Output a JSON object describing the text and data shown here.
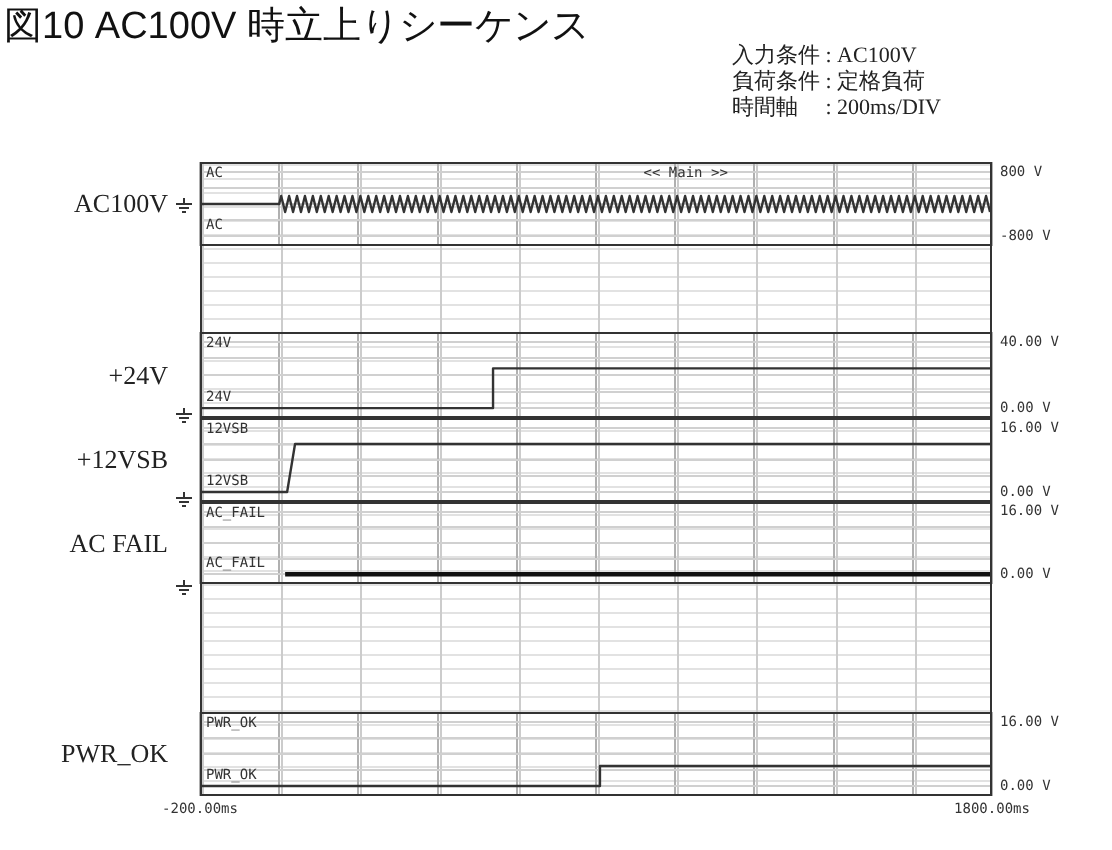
{
  "chart_data": [
    {
      "type": "line",
      "title": "図10 AC100V 時立上りシーケンス",
      "ylabel": "AC100V",
      "annotations": [
        "AC",
        "AC",
        "<< Main >>",
        "入力条件 : AC100V",
        "負荷条件 : 定格負荷",
        "時間軸　 : 200ms/DIV"
      ],
      "xlim": [
        -200,
        1800
      ],
      "xticks": [
        {
          "value": -200,
          "label": null
        },
        {
          "value": 0,
          "label": null
        },
        {
          "value": 200,
          "label": null
        },
        {
          "value": 400,
          "label": null
        },
        {
          "value": 600,
          "label": null
        },
        {
          "value": 800,
          "label": null
        },
        {
          "value": 1000,
          "label": null
        },
        {
          "value": 1200,
          "label": null
        },
        {
          "value": 1400,
          "label": null
        },
        {
          "value": 1600,
          "label": null
        },
        {
          "value": 1800,
          "label": null
        }
      ],
      "ylim": [
        -1050,
        1050
      ],
      "yticks": [
        {
          "value": -800,
          "label": "-800 V"
        },
        {
          "value": -400,
          "label": null
        },
        {
          "value": 0,
          "label": null
        },
        {
          "value": 400,
          "label": null
        },
        {
          "value": 800,
          "label": "800 V"
        }
      ],
      "grid": true,
      "legend": false,
      "marker": "none",
      "tick_labels": "y",
      "series": [
        {
          "color": "#333333",
          "x": [
            -200,
            0,
            5,
            15,
            25,
            35,
            45,
            55,
            65,
            75,
            85,
            95,
            105,
            115,
            125,
            135,
            145,
            155,
            165,
            175,
            185,
            195,
            205,
            215,
            225,
            235,
            245,
            255,
            265,
            275,
            285,
            295,
            305,
            315,
            325,
            335,
            345,
            355,
            365,
            375,
            385,
            395,
            405,
            415,
            425,
            435,
            445,
            455,
            465,
            475,
            485,
            495,
            505,
            515,
            525,
            535,
            545,
            555,
            565,
            575,
            585,
            595,
            605,
            615,
            625,
            635,
            645,
            655,
            665,
            675,
            685,
            695,
            705,
            715,
            725,
            735,
            745,
            755,
            765,
            775,
            785,
            795,
            805,
            815,
            825,
            835,
            845,
            855,
            865,
            875,
            885,
            895,
            905,
            915,
            925,
            935,
            945,
            955,
            965,
            975,
            985,
            995,
            1005,
            1015,
            1025,
            1035,
            1045,
            1055,
            1065,
            1075,
            1085,
            1095,
            1105,
            1115,
            1125,
            1135,
            1145,
            1155,
            1165,
            1175,
            1185,
            1195,
            1205,
            1215,
            1225,
            1235,
            1245,
            1255,
            1265,
            1275,
            1285,
            1295,
            1305,
            1315,
            1325,
            1335,
            1345,
            1355,
            1365,
            1375,
            1385,
            1395,
            1405,
            1415,
            1425,
            1435,
            1445,
            1455,
            1465,
            1475,
            1485,
            1495,
            1505,
            1515,
            1525,
            1535,
            1545,
            1555,
            1565,
            1575,
            1585,
            1595,
            1605,
            1615,
            1625,
            1635,
            1645,
            1655,
            1665,
            1675,
            1685,
            1695,
            1705,
            1715,
            1725,
            1735,
            1745,
            1755,
            1765,
            1775,
            1785,
            1795
          ],
          "values": [
            0,
            0,
            200,
            -200,
            200,
            -200,
            200,
            -200,
            200,
            -200,
            200,
            -200,
            200,
            -200,
            200,
            -200,
            200,
            -200,
            200,
            -200,
            200,
            -200,
            200,
            -200,
            200,
            -200,
            200,
            -200,
            200,
            -200,
            200,
            -200,
            200,
            -200,
            200,
            -200,
            200,
            -200,
            200,
            -200,
            200,
            -200,
            200,
            -200,
            200,
            -200,
            200,
            -200,
            200,
            -200,
            200,
            -200,
            200,
            -200,
            200,
            -200,
            200,
            -200,
            200,
            -200,
            200,
            -200,
            200,
            -200,
            200,
            -200,
            200,
            -200,
            200,
            -200,
            200,
            -200,
            200,
            -200,
            200,
            -200,
            200,
            -200,
            200,
            -200,
            200,
            -200,
            200,
            -200,
            200,
            -200,
            200,
            -200,
            200,
            -200,
            200,
            -200,
            200,
            -200,
            200,
            -200,
            200,
            -200,
            200,
            -200,
            200,
            -200,
            200,
            -200,
            200,
            -200,
            200,
            -200,
            200,
            -200,
            200,
            -200,
            200,
            -200,
            200,
            -200,
            200,
            -200,
            200,
            -200,
            200,
            -200,
            200,
            -200,
            200,
            -200,
            200,
            -200,
            200,
            -200,
            200,
            -200,
            200,
            -200,
            200,
            -200,
            200,
            -200,
            200,
            -200,
            200,
            -200,
            200,
            -200,
            200,
            -200,
            200,
            -200,
            200,
            -200,
            200,
            -200,
            200,
            -200,
            200,
            -200,
            200,
            -200,
            200,
            -200,
            200,
            -200,
            200,
            -200,
            200,
            -200,
            200,
            -200,
            200,
            -200,
            200,
            -200,
            200,
            -200,
            200,
            -200,
            200,
            -200,
            200,
            -200,
            200,
            -200
          ]
        }
      ]
    },
    {
      "type": "line",
      "ylabel": "+24V",
      "annotations": [
        "24V",
        "24V"
      ],
      "xlim": [
        -200,
        1800
      ],
      "xticks": [
        {
          "value": -200,
          "label": null
        },
        {
          "value": 0,
          "label": null
        },
        {
          "value": 200,
          "label": null
        },
        {
          "value": 400,
          "label": null
        },
        {
          "value": 600,
          "label": null
        },
        {
          "value": 800,
          "label": null
        },
        {
          "value": 1000,
          "label": null
        },
        {
          "value": 1200,
          "label": null
        },
        {
          "value": 1400,
          "label": null
        },
        {
          "value": 1600,
          "label": null
        },
        {
          "value": 1800,
          "label": null
        }
      ],
      "ylim": [
        -6,
        46
      ],
      "yticks": [
        {
          "value": 0,
          "label": "0.00 V"
        },
        {
          "value": 10,
          "label": null
        },
        {
          "value": 20,
          "label": null
        },
        {
          "value": 30,
          "label": null
        },
        {
          "value": 40,
          "label": "40.00 V"
        }
      ],
      "grid": true,
      "legend": false,
      "marker": "none",
      "tick_labels": "y",
      "series": [
        {
          "color": "#333333",
          "x": [
            -200,
            540,
            540,
            1800
          ],
          "values": [
            0,
            0,
            24,
            24
          ]
        }
      ]
    },
    {
      "type": "line",
      "ylabel": "+12VSB",
      "annotations": [
        "12VSB",
        "12VSB"
      ],
      "xlim": [
        -200,
        1800
      ],
      "xticks": [
        {
          "value": -200,
          "label": null
        },
        {
          "value": 0,
          "label": null
        },
        {
          "value": 200,
          "label": null
        },
        {
          "value": 400,
          "label": null
        },
        {
          "value": 600,
          "label": null
        },
        {
          "value": 800,
          "label": null
        },
        {
          "value": 1000,
          "label": null
        },
        {
          "value": 1200,
          "label": null
        },
        {
          "value": 1400,
          "label": null
        },
        {
          "value": 1600,
          "label": null
        },
        {
          "value": 1800,
          "label": null
        }
      ],
      "ylim": [
        -2.5,
        18.5
      ],
      "yticks": [
        {
          "value": 0,
          "label": "0.00 V"
        },
        {
          "value": 4,
          "label": null
        },
        {
          "value": 8,
          "label": null
        },
        {
          "value": 12,
          "label": null
        },
        {
          "value": 16,
          "label": "16.00 V"
        }
      ],
      "grid": true,
      "legend": false,
      "marker": "none",
      "tick_labels": "y",
      "series": [
        {
          "color": "#333333",
          "x": [
            -200,
            20,
            40,
            1800
          ],
          "values": [
            0,
            0,
            12,
            12
          ]
        }
      ]
    },
    {
      "type": "line",
      "ylabel": "AC FAIL",
      "annotations": [
        "AC_FAIL",
        "AC_FAIL"
      ],
      "xlim": [
        -200,
        1800
      ],
      "xticks": [
        {
          "value": -200,
          "label": null
        },
        {
          "value": 0,
          "label": null
        },
        {
          "value": 200,
          "label": null
        },
        {
          "value": 400,
          "label": null
        },
        {
          "value": 600,
          "label": null
        },
        {
          "value": 800,
          "label": null
        },
        {
          "value": 1000,
          "label": null
        },
        {
          "value": 1200,
          "label": null
        },
        {
          "value": 1400,
          "label": null
        },
        {
          "value": 1600,
          "label": null
        },
        {
          "value": 1800,
          "label": null
        }
      ],
      "ylim": [
        -2.5,
        18.5
      ],
      "yticks": [
        {
          "value": 0,
          "label": "0.00 V"
        },
        {
          "value": 4,
          "label": null
        },
        {
          "value": 8,
          "label": null
        },
        {
          "value": 12,
          "label": null
        },
        {
          "value": 16,
          "label": "16.00 V"
        }
      ],
      "grid": true,
      "legend": false,
      "marker": "none",
      "tick_labels": "y",
      "series": [
        {
          "color": "#111111",
          "x": [
            15,
            1800
          ],
          "values": [
            0,
            0
          ]
        }
      ]
    },
    {
      "type": "line",
      "ylabel": "PWR_OK",
      "annotations": [
        "PWR_OK",
        "PWR_OK"
      ],
      "xlim": [
        -200,
        1800
      ],
      "xticks": [
        {
          "value": -200,
          "label": "-200.00ms"
        },
        {
          "value": 0,
          "label": null
        },
        {
          "value": 200,
          "label": null
        },
        {
          "value": 400,
          "label": null
        },
        {
          "value": 600,
          "label": null
        },
        {
          "value": 800,
          "label": null
        },
        {
          "value": 1000,
          "label": null
        },
        {
          "value": 1200,
          "label": null
        },
        {
          "value": 1400,
          "label": null
        },
        {
          "value": 1600,
          "label": null
        },
        {
          "value": 1800,
          "label": "1800.00ms"
        }
      ],
      "ylim": [
        -2.5,
        18.5
      ],
      "yticks": [
        {
          "value": 0,
          "label": "0.00 V"
        },
        {
          "value": 4,
          "label": null
        },
        {
          "value": 8,
          "label": null
        },
        {
          "value": 12,
          "label": null
        },
        {
          "value": 16,
          "label": "16.00 V"
        }
      ],
      "grid": true,
      "legend": false,
      "marker": "none",
      "series": [
        {
          "color": "#333333",
          "x": [
            -200,
            810,
            810,
            1800
          ],
          "values": [
            0,
            0,
            5,
            5
          ]
        }
      ]
    }
  ]
}
